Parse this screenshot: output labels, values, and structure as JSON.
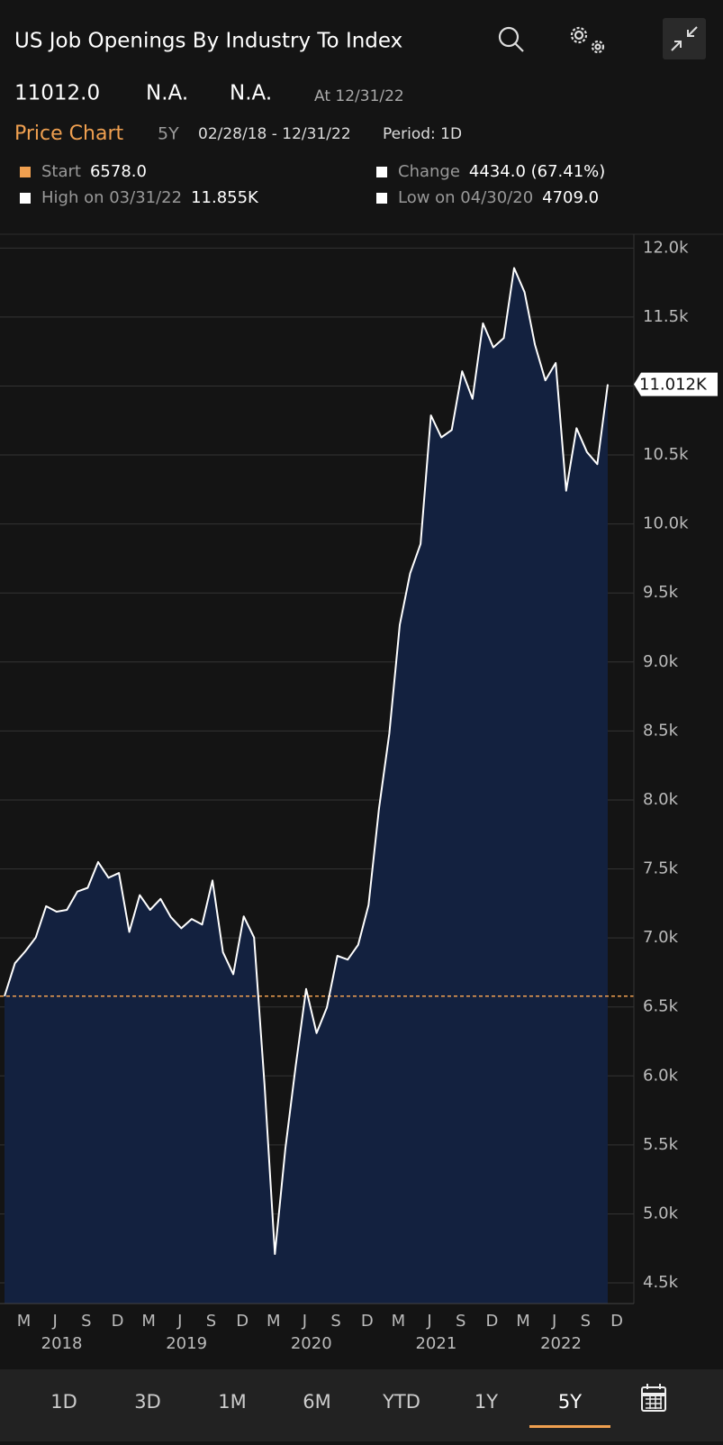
{
  "header": {
    "title": "US Job Openings By Industry To Index",
    "last": "11012.0",
    "change": "N.A.",
    "pct_change": "N.A.",
    "as_of": "At 12/31/22"
  },
  "chart_header": {
    "label": "Price Chart",
    "range": "5Y",
    "dates": "02/28/18 - 12/31/22",
    "period": "Period: 1D"
  },
  "stats": [
    {
      "label": "Start",
      "value": "6578.0",
      "color": "#f0a050"
    },
    {
      "label": "Change",
      "value": "4434.0 (67.41%)",
      "color": "#ffffff"
    },
    {
      "label": "High on 03/31/22",
      "value": "11.855K",
      "color": "#ffffff"
    },
    {
      "label": "Low on 04/30/20",
      "value": "4709.0",
      "color": "#ffffff"
    }
  ],
  "chart_data": {
    "type": "area",
    "categories": [
      null,
      "M",
      null,
      null,
      "J",
      null,
      null,
      "S",
      null,
      null,
      "D",
      null,
      null,
      "M",
      null,
      null,
      "J",
      null,
      null,
      "S",
      null,
      null,
      "D",
      null,
      null,
      "M",
      null,
      null,
      "J",
      null,
      null,
      "S",
      null,
      null,
      "D",
      null,
      null,
      "M",
      null,
      null,
      "J",
      null,
      null,
      "S",
      null,
      null,
      "D",
      null,
      null,
      "M",
      null,
      null,
      "J",
      null,
      null,
      "S",
      null,
      null,
      "D"
    ],
    "year_labels": [
      "2018",
      "2019",
      "2020",
      "2021",
      "2022"
    ],
    "values": [
      6578,
      6817,
      6903,
      7003,
      7230,
      7190,
      7203,
      7336,
      7363,
      7550,
      7436,
      7470,
      7043,
      7310,
      7203,
      7283,
      7150,
      7070,
      7137,
      7097,
      7416,
      6897,
      6737,
      7156,
      7003,
      5937,
      4709,
      5471,
      6071,
      6630,
      6310,
      6497,
      6870,
      6843,
      6950,
      7237,
      7936,
      8482,
      9269,
      9642,
      9855,
      10787,
      10628,
      10681,
      11107,
      10907,
      11454,
      11280,
      11347,
      11855,
      11680,
      11300,
      11041,
      11167,
      10241,
      10694,
      10521,
      10434,
      11012
    ],
    "color": "#ffffff",
    "fill": "#13213f",
    "start_line": 6578,
    "start_line_color": "#f0a050",
    "last_value_label": "11.012K",
    "ylim": [
      4350,
      12100
    ],
    "yticks": [
      {
        "value": 4500,
        "label": "4.5k"
      },
      {
        "value": 5000,
        "label": "5.0k"
      },
      {
        "value": 5500,
        "label": "5.5k"
      },
      {
        "value": 6000,
        "label": "6.0k"
      },
      {
        "value": 6500,
        "label": "6.5k"
      },
      {
        "value": 7000,
        "label": "7.0k"
      },
      {
        "value": 7500,
        "label": "7.5k"
      },
      {
        "value": 8000,
        "label": "8.0k"
      },
      {
        "value": 8500,
        "label": "8.5k"
      },
      {
        "value": 9000,
        "label": "9.0k"
      },
      {
        "value": 9500,
        "label": "9.5k"
      },
      {
        "value": 10000,
        "label": "10.0k"
      },
      {
        "value": 10500,
        "label": "10.5k"
      },
      {
        "value": 11000,
        "label": "11.0k"
      },
      {
        "value": 11500,
        "label": "11.5k"
      },
      {
        "value": 12000,
        "label": "12.0k"
      }
    ],
    "grid": true
  },
  "tabs": [
    {
      "label": "1D",
      "selected": false
    },
    {
      "label": "3D",
      "selected": false
    },
    {
      "label": "1M",
      "selected": false
    },
    {
      "label": "6M",
      "selected": false
    },
    {
      "label": "YTD",
      "selected": false
    },
    {
      "label": "1Y",
      "selected": false
    },
    {
      "label": "5Y",
      "selected": true
    }
  ]
}
